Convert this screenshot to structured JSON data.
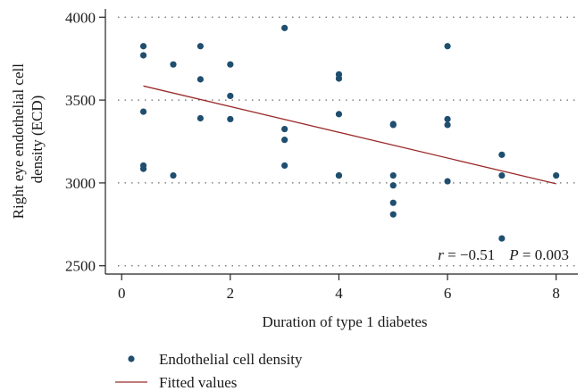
{
  "chart_data": {
    "type": "scatter",
    "xlabel": "Duration of type 1 diabetes",
    "ylabel": "Right eye endothelial cell density (ECD)",
    "ylabel_lines": [
      "Right eye endothelial cell",
      "density (ECD)"
    ],
    "xlim": [
      -0.3,
      8.4
    ],
    "ylim": [
      2450,
      4050
    ],
    "x_ticks": [
      0,
      2,
      4,
      6,
      8
    ],
    "y_ticks": [
      2500,
      3000,
      3500,
      4000
    ],
    "grid": "horizontal dotted",
    "legend_position": "bottom-left",
    "annotation": {
      "r_symbol": "r",
      "r_text": " = −0.51",
      "p_symbol": "P",
      "p_text": " = 0.003"
    },
    "series": [
      {
        "name": "Endothelial cell density",
        "kind": "scatter",
        "color": "#1f4e6f",
        "points": [
          [
            0.4,
            3825
          ],
          [
            0.4,
            3770
          ],
          [
            0.4,
            3430
          ],
          [
            0.4,
            3105
          ],
          [
            0.4,
            3085
          ],
          [
            0.95,
            3715
          ],
          [
            0.95,
            3045
          ],
          [
            1.45,
            3825
          ],
          [
            1.45,
            3625
          ],
          [
            1.45,
            3390
          ],
          [
            2.0,
            3715
          ],
          [
            2.0,
            3525
          ],
          [
            2.0,
            3385
          ],
          [
            3.0,
            3935
          ],
          [
            3.0,
            3325
          ],
          [
            3.0,
            3260
          ],
          [
            3.0,
            3105
          ],
          [
            4.0,
            3655
          ],
          [
            4.0,
            3630
          ],
          [
            4.0,
            3415
          ],
          [
            4.0,
            3045
          ],
          [
            4.0,
            3045
          ],
          [
            5.0,
            3355
          ],
          [
            5.0,
            3350
          ],
          [
            5.0,
            3045
          ],
          [
            5.0,
            2985
          ],
          [
            5.0,
            2880
          ],
          [
            5.0,
            2810
          ],
          [
            6.0,
            3825
          ],
          [
            6.0,
            3385
          ],
          [
            6.0,
            3350
          ],
          [
            6.0,
            3010
          ],
          [
            7.0,
            3170
          ],
          [
            7.0,
            3045
          ],
          [
            7.0,
            2665
          ],
          [
            8.0,
            3045
          ]
        ]
      },
      {
        "name": "Fitted values",
        "kind": "line",
        "color": "#9b2a2a",
        "points": [
          [
            0.4,
            3585
          ],
          [
            8.0,
            2995
          ]
        ]
      }
    ]
  }
}
